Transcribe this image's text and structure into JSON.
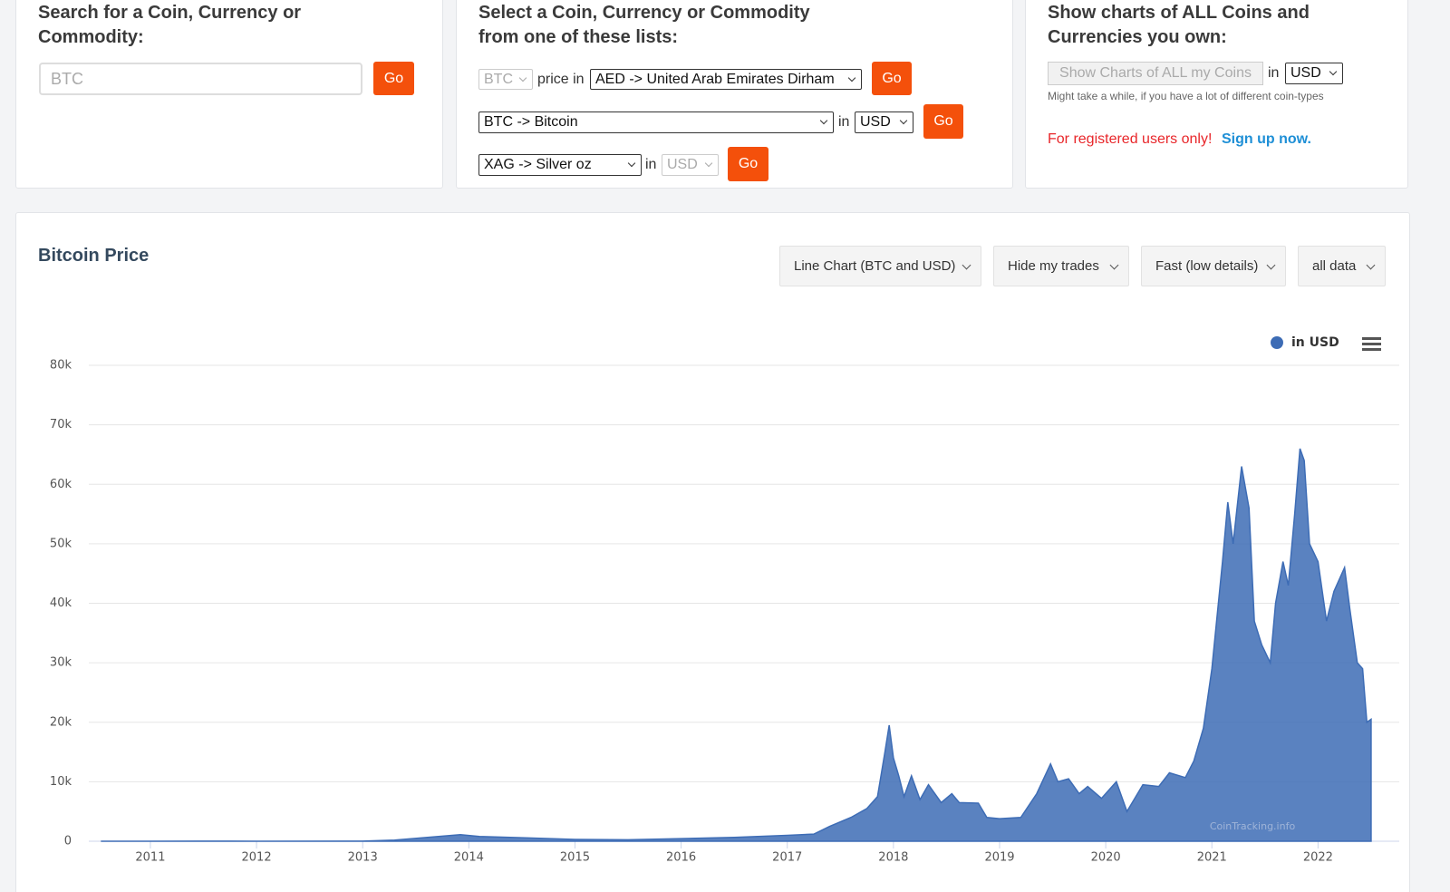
{
  "search": {
    "title": "Search for a Coin, Currency or Commodity:",
    "placeholder": "BTC",
    "button": "Go"
  },
  "lists": {
    "title": "Select a Coin, Currency or Commodity from one of these lists:",
    "rows": [
      {
        "coin": "BTC",
        "label": "price in",
        "currency": "AED -> United Arab Emirates Dirham",
        "button": "Go"
      },
      {
        "coin": "BTC -> Bitcoin",
        "label": "in",
        "currency": "USD",
        "button": "Go"
      },
      {
        "coin": "XAG -> Silver oz",
        "label": "in",
        "currency": "USD",
        "button": "Go"
      }
    ]
  },
  "own": {
    "title": "Show charts of ALL Coins and Currencies you own:",
    "button": "Show Charts of ALL my Coins",
    "label": "in",
    "currency": "USD",
    "note": "Might take a while, if you have a lot of different coin-types",
    "warning": "For registered users only!",
    "link": "Sign up now."
  },
  "chart_panel": {
    "controls": [
      "Line Chart (BTC and USD)",
      "Hide my trades",
      "Fast (low details)",
      "all data"
    ]
  },
  "chart_data": {
    "type": "area",
    "title": "Bitcoin Price",
    "watermark": "CoinTracking.info",
    "grid": true,
    "legend": "top-right",
    "xlim": [
      2010.42,
      2022.62
    ],
    "xticks": [
      2011,
      2012,
      2013,
      2014,
      2015,
      2016,
      2017,
      2018,
      2019,
      2020,
      2021,
      2022
    ],
    "ylim": [
      0,
      80000
    ],
    "yticks": [
      0,
      {
        "value": 10000,
        "label": "10k"
      },
      {
        "value": 20000,
        "label": "20k"
      },
      {
        "value": 30000,
        "label": "30k"
      },
      {
        "value": 40000,
        "label": "40k"
      },
      {
        "value": 50000,
        "label": "50k"
      },
      {
        "value": 60000,
        "label": "60k"
      },
      {
        "value": 70000,
        "label": "70k"
      },
      {
        "value": 80000,
        "label": "80k"
      }
    ],
    "x": [
      2010.54,
      2011.0,
      2011.45,
      2012.0,
      2013.0,
      2013.3,
      2013.92,
      2014.1,
      2014.5,
      2015.0,
      2015.5,
      2016.0,
      2016.5,
      2017.0,
      2017.25,
      2017.4,
      2017.6,
      2017.75,
      2017.85,
      2017.92,
      2017.96,
      2018.0,
      2018.05,
      2018.1,
      2018.17,
      2018.25,
      2018.33,
      2018.45,
      2018.55,
      2018.62,
      2018.8,
      2018.88,
      2019.0,
      2019.2,
      2019.35,
      2019.48,
      2019.55,
      2019.65,
      2019.75,
      2019.83,
      2019.96,
      2020.1,
      2020.2,
      2020.35,
      2020.5,
      2020.6,
      2020.75,
      2020.83,
      2020.92,
      2021.0,
      2021.1,
      2021.15,
      2021.2,
      2021.28,
      2021.35,
      2021.4,
      2021.47,
      2021.55,
      2021.6,
      2021.67,
      2021.72,
      2021.78,
      2021.83,
      2021.87,
      2021.92,
      2022.0,
      2022.08,
      2022.15,
      2022.25,
      2022.3,
      2022.37,
      2022.42,
      2022.46,
      2022.5
    ],
    "series": [
      {
        "name": "in USD",
        "color": "#3d6cb5",
        "values": [
          0.07,
          0.3,
          18,
          5,
          13,
          200,
          1100,
          800,
          600,
          300,
          250,
          430,
          650,
          1000,
          1200,
          2500,
          4000,
          5500,
          7500,
          15000,
          19500,
          14000,
          11000,
          7500,
          11000,
          7000,
          9500,
          6500,
          8000,
          6500,
          6400,
          4000,
          3800,
          4000,
          8000,
          13000,
          10000,
          10500,
          8000,
          9200,
          7200,
          10000,
          5000,
          9500,
          9200,
          11500,
          10700,
          13500,
          19000,
          29000,
          47000,
          57000,
          50000,
          63000,
          56000,
          37000,
          33000,
          30000,
          40000,
          47000,
          43000,
          55000,
          66000,
          64000,
          50000,
          47000,
          37000,
          42000,
          46000,
          39000,
          30000,
          29000,
          20000,
          20500
        ]
      }
    ]
  }
}
